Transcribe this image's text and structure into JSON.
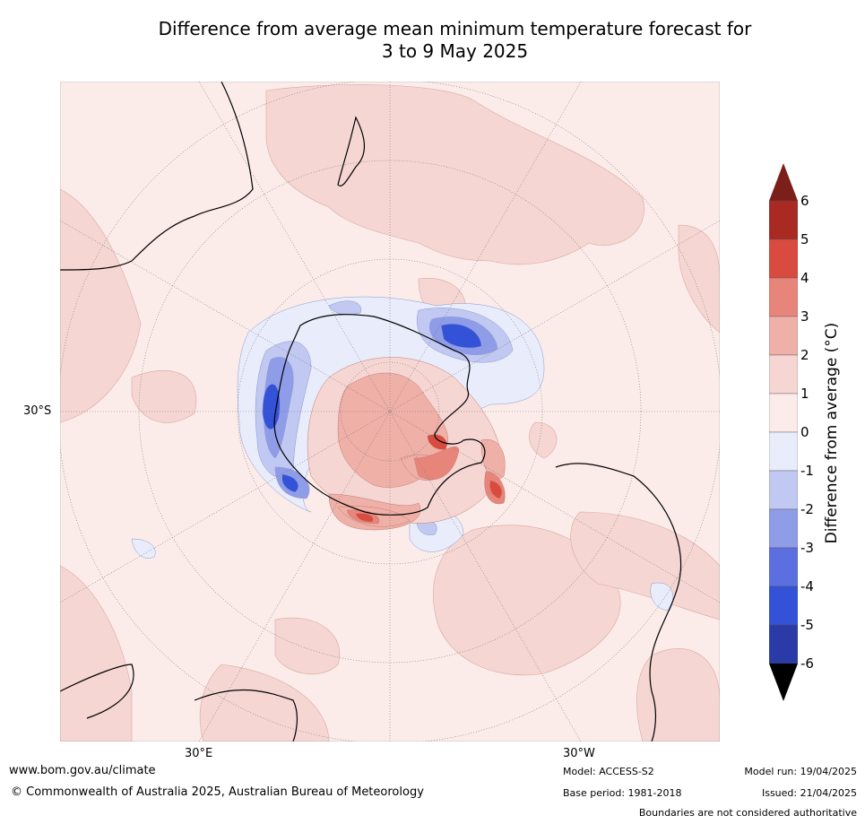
{
  "title": {
    "line1": "Difference from average mean minimum temperature forecast for",
    "line2": "3 to 9 May 2025"
  },
  "map": {
    "projection": "south-polar-stereographic",
    "lat_labels": {
      "left": "30°S"
    },
    "lon_labels": {
      "bottom_left": "30°E",
      "bottom_right": "30°W"
    }
  },
  "colorbar": {
    "title": "Difference from average (°C)",
    "ticks": [
      "6",
      "5",
      "4",
      "3",
      "2",
      "1",
      "0",
      "-1",
      "-2",
      "-3",
      "-4",
      "-5",
      "-6"
    ],
    "colors": {
      "above_6": "#7a1f19",
      "5_6": "#a82a22",
      "4_5": "#d94b3f",
      "3_4": "#e8857b",
      "2_3": "#efb0a8",
      "1_2": "#f5d6d3",
      "0_1": "#fbecea",
      "-1_0": "#e9ecfb",
      "-2_-1": "#c1c8f2",
      "-3_-2": "#8f9ce8",
      "-4_-3": "#5b6fe0",
      "-5_-4": "#3452d8",
      "-6_-5": "#2a3ba8",
      "below_-6": "#1f2a7a"
    }
  },
  "footer": {
    "website": "www.bom.gov.au/climate",
    "copyright": "© Commonwealth of Australia 2025, Australian Bureau of Meteorology",
    "model": "Model: ACCESS-S2",
    "base_period": "Base period: 1981-2018",
    "model_run": "Model run: 19/04/2025",
    "issued": "Issued: 21/04/2025",
    "disclaimer": "Boundaries are not considered authoritative"
  }
}
